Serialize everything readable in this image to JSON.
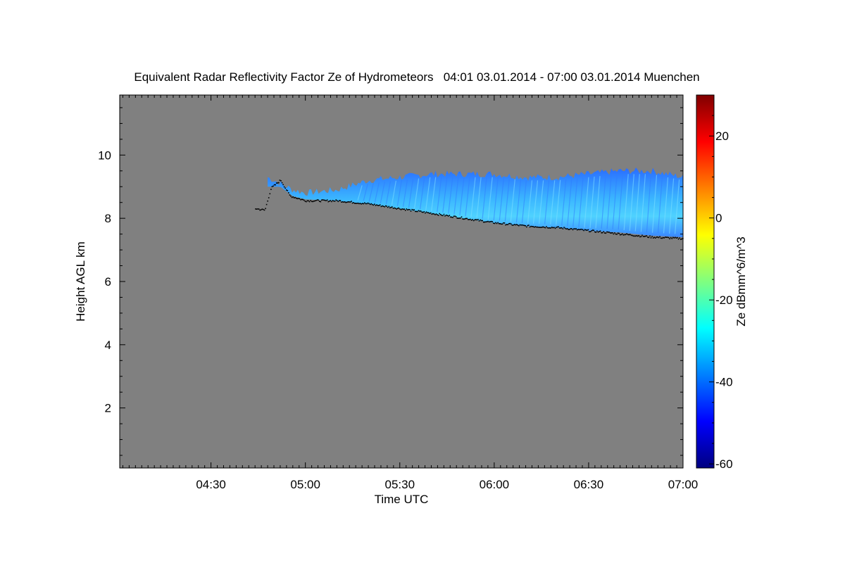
{
  "chart_data": {
    "type": "heatmap",
    "title": "Equivalent Radar Reflectivity Factor Ze of Hydrometeors   04:01 03.01.2014 - 07:00 03.01.2014 Muenchen",
    "xlabel": "Time UTC",
    "ylabel": "Height AGL km",
    "x_range": [
      "04:01",
      "07:00"
    ],
    "y_range": [
      0.1,
      11.9
    ],
    "x_ticks": [
      "04:30",
      "05:00",
      "05:30",
      "06:00",
      "06:30",
      "07:00"
    ],
    "y_ticks": [
      2,
      4,
      6,
      8,
      10
    ],
    "colorbar": {
      "label": "Ze dBmm^6/m^3",
      "range": [
        -61,
        30
      ],
      "ticks": [
        -60,
        -40,
        -20,
        0,
        20
      ],
      "colormap": "jet"
    },
    "background_color": "#808080",
    "echo_layer": {
      "description_units": "time HH:MM, height km, reflectivity dBZ",
      "top_km": [
        [
          "04:48",
          9.3
        ],
        [
          "04:52",
          9.1
        ],
        [
          "04:56",
          8.9
        ],
        [
          "05:00",
          8.8
        ],
        [
          "05:10",
          8.9
        ],
        [
          "05:20",
          9.2
        ],
        [
          "05:30",
          9.3
        ],
        [
          "05:40",
          9.4
        ],
        [
          "05:50",
          9.4
        ],
        [
          "06:00",
          9.4
        ],
        [
          "06:10",
          9.3
        ],
        [
          "06:20",
          9.3
        ],
        [
          "06:30",
          9.4
        ],
        [
          "06:40",
          9.5
        ],
        [
          "06:50",
          9.5
        ],
        [
          "07:00",
          9.3
        ]
      ],
      "base_km": [
        [
          "04:48",
          9.0
        ],
        [
          "04:52",
          9.0
        ],
        [
          "04:56",
          8.7
        ],
        [
          "05:00",
          8.6
        ],
        [
          "05:10",
          8.55
        ],
        [
          "05:20",
          8.45
        ],
        [
          "05:30",
          8.3
        ],
        [
          "05:40",
          8.15
        ],
        [
          "05:50",
          8.0
        ],
        [
          "06:00",
          7.85
        ],
        [
          "06:10",
          7.75
        ],
        [
          "06:20",
          7.7
        ],
        [
          "06:30",
          7.6
        ],
        [
          "06:40",
          7.55
        ],
        [
          "06:50",
          7.45
        ],
        [
          "07:00",
          7.4
        ]
      ],
      "reflectivity_dbz": [
        -45,
        -30
      ]
    },
    "cloud_base_km": [
      [
        "04:44",
        8.3
      ],
      [
        "04:47",
        8.25
      ],
      [
        "04:49",
        8.95
      ],
      [
        "04:52",
        9.2
      ],
      [
        "04:55",
        8.7
      ],
      [
        "05:00",
        8.55
      ],
      [
        "05:10",
        8.55
      ],
      [
        "05:20",
        8.45
      ],
      [
        "05:30",
        8.3
      ],
      [
        "05:40",
        8.15
      ],
      [
        "05:50",
        8.0
      ],
      [
        "06:00",
        7.85
      ],
      [
        "06:10",
        7.75
      ],
      [
        "06:20",
        7.7
      ],
      [
        "06:30",
        7.6
      ],
      [
        "06:40",
        7.5
      ],
      [
        "06:50",
        7.4
      ],
      [
        "07:00",
        7.35
      ]
    ]
  }
}
